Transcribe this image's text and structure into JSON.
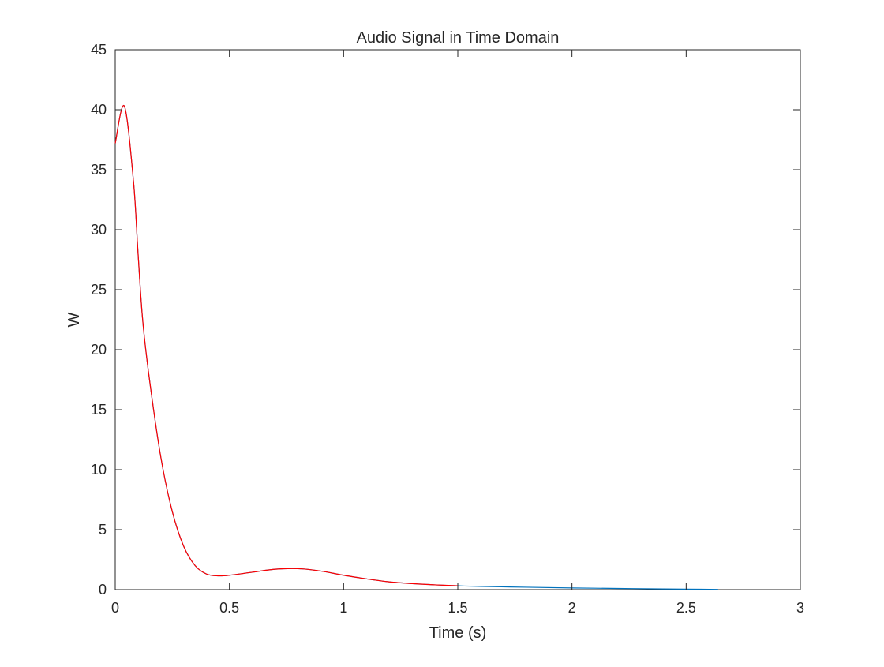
{
  "chart_data": {
    "type": "line",
    "title": "Audio Signal in Time Domain",
    "xlabel": "Time (s)",
    "ylabel": "W",
    "xlim": [
      0,
      3
    ],
    "ylim": [
      0,
      45
    ],
    "xticks": [
      0,
      0.5,
      1,
      1.5,
      2,
      2.5,
      3
    ],
    "xtick_labels": [
      "0",
      "0.5",
      "1",
      "1.5",
      "2",
      "2.5",
      "3"
    ],
    "yticks": [
      0,
      5,
      10,
      15,
      20,
      25,
      30,
      35,
      40,
      45
    ],
    "ytick_labels": [
      "0",
      "5",
      "10",
      "15",
      "20",
      "25",
      "30",
      "35",
      "40",
      "45"
    ],
    "grid": false,
    "colors": {
      "signal": "#0072BD",
      "highlight": "#FF0000",
      "axes": "#262626"
    },
    "series": [
      {
        "color": "#0072BD",
        "x": [
          0,
          0.04,
          0.08,
          0.1,
          0.12,
          0.15,
          0.2,
          0.25,
          0.3,
          0.35,
          0.4,
          0.45,
          0.5,
          0.6,
          0.7,
          0.8,
          0.9,
          1.0,
          1.1,
          1.2,
          1.3,
          1.4,
          1.5,
          1.6,
          1.8,
          2.0,
          2.2,
          2.4,
          2.64
        ],
        "y": [
          37.2,
          40.3,
          34.0,
          28.0,
          22.5,
          17.5,
          11.0,
          6.5,
          3.6,
          2.0,
          1.3,
          1.15,
          1.2,
          1.45,
          1.7,
          1.75,
          1.55,
          1.2,
          0.9,
          0.65,
          0.5,
          0.4,
          0.32,
          0.27,
          0.2,
          0.14,
          0.1,
          0.06,
          0.02
        ]
      },
      {
        "color": "#FF0000",
        "x": [
          0,
          0.04,
          0.08,
          0.1,
          0.12,
          0.15,
          0.2,
          0.25,
          0.3,
          0.35,
          0.4,
          0.45,
          0.5,
          0.6,
          0.7,
          0.8,
          0.9,
          1.0,
          1.1,
          1.2,
          1.3,
          1.4,
          1.5
        ],
        "y": [
          37.2,
          40.3,
          34.0,
          28.0,
          22.5,
          17.5,
          11.0,
          6.5,
          3.6,
          2.0,
          1.3,
          1.15,
          1.2,
          1.45,
          1.7,
          1.75,
          1.55,
          1.2,
          0.9,
          0.65,
          0.5,
          0.4,
          0.32
        ]
      }
    ]
  }
}
